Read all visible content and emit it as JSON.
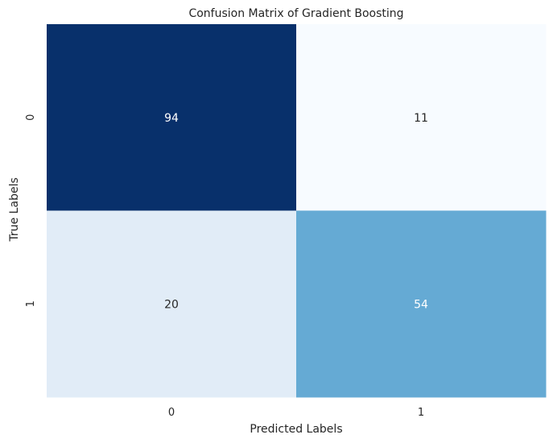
{
  "chart_data": {
    "type": "heatmap",
    "title": "Confusion Matrix of Gradient Boosting",
    "xlabel": "Predicted Labels",
    "ylabel": "True Labels",
    "x_categories": [
      "0",
      "1"
    ],
    "y_categories": [
      "0",
      "1"
    ],
    "values": [
      [
        94,
        11
      ],
      [
        20,
        54
      ]
    ],
    "colormap": "Blues",
    "cell_colors": [
      [
        "#08306b",
        "#f7fbff"
      ],
      [
        "#e1ecf7",
        "#65aad4"
      ]
    ],
    "cell_text_colors": [
      [
        "#ffffff",
        "#262626"
      ],
      [
        "#262626",
        "#ffffff"
      ]
    ],
    "colorbar": false
  }
}
